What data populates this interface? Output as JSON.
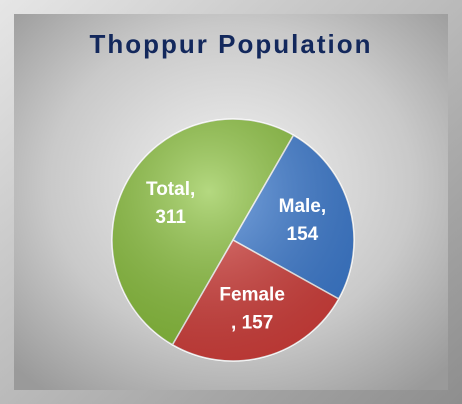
{
  "chart_data": {
    "type": "pie",
    "title": "Thoppur Population",
    "categories": [
      "Total,",
      "Male,",
      "Female"
    ],
    "values": [
      311,
      154,
      157
    ],
    "value_labels": [
      "311",
      "154",
      ", 157"
    ],
    "colors": [
      "#8cc43c",
      "#3d7ed6",
      "#d8403c"
    ]
  }
}
